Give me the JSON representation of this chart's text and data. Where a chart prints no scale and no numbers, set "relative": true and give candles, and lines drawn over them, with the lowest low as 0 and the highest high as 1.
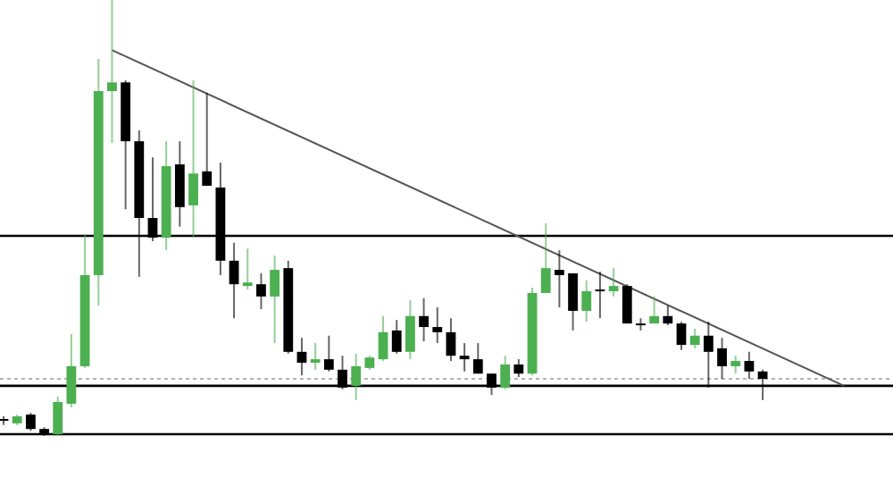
{
  "chart_data": {
    "type": "candlestick",
    "relative": true,
    "categories": [
      null,
      null,
      null,
      null,
      null,
      null,
      null,
      null,
      null,
      null,
      null,
      null,
      null,
      null,
      null,
      null,
      null,
      null,
      null,
      null,
      null,
      null,
      null,
      null,
      null,
      null,
      null,
      null,
      null,
      null,
      null,
      null,
      null,
      null,
      null,
      null,
      null,
      null,
      null,
      null,
      null,
      null,
      null,
      null,
      null,
      null,
      null,
      null,
      null,
      null,
      null,
      null,
      null,
      null,
      null,
      null,
      null,
      null,
      null,
      null,
      null,
      null,
      null,
      null,
      null
    ],
    "ohlc": [
      [
        0.039,
        0.045,
        0.025,
        0.035
      ],
      [
        0.029,
        0.049,
        0.025,
        0.045
      ],
      [
        0.049,
        0.053,
        0.012,
        0.016
      ],
      [
        0.016,
        0.02,
        0,
        0.004
      ],
      [
        0.004,
        0.09,
        0,
        0.078
      ],
      [
        0.074,
        0.234,
        0.066,
        0.16
      ],
      [
        0.16,
        0.463,
        0.156,
        0.369
      ],
      [
        0.369,
        0.865,
        0.299,
        0.791
      ],
      [
        0.791,
        1,
        0.672,
        0.811
      ],
      [
        0.811,
        0.816,
        0.52,
        0.676
      ],
      [
        0.676,
        0.701,
        0.365,
        0.5
      ],
      [
        0.5,
        0.639,
        0.447,
        0.455
      ],
      [
        0.455,
        0.676,
        0.426,
        0.619
      ],
      [
        0.623,
        0.676,
        0.48,
        0.525
      ],
      [
        0.529,
        0.816,
        0.455,
        0.602
      ],
      [
        0.607,
        0.787,
        0.574,
        0.574
      ],
      [
        0.57,
        0.627,
        0.369,
        0.402
      ],
      [
        0.402,
        0.443,
        0.27,
        0.348
      ],
      [
        0.344,
        0.43,
        0.336,
        0.352
      ],
      [
        0.348,
        0.373,
        0.291,
        0.32
      ],
      [
        0.32,
        0.414,
        0.213,
        0.381
      ],
      [
        0.385,
        0.402,
        0.189,
        0.193
      ],
      [
        0.193,
        0.225,
        0.139,
        0.168
      ],
      [
        0.168,
        0.213,
        0.152,
        0.176
      ],
      [
        0.176,
        0.23,
        0.148,
        0.152
      ],
      [
        0.152,
        0.184,
        0.107,
        0.111
      ],
      [
        0.115,
        0.189,
        0.082,
        0.16
      ],
      [
        0.156,
        0.184,
        0.152,
        0.18
      ],
      [
        0.176,
        0.275,
        0.172,
        0.238
      ],
      [
        0.242,
        0.266,
        0.189,
        0.193
      ],
      [
        0.193,
        0.311,
        0.176,
        0.275
      ],
      [
        0.275,
        0.316,
        0.217,
        0.25
      ],
      [
        0.25,
        0.295,
        0.213,
        0.238
      ],
      [
        0.238,
        0.27,
        0.172,
        0.184
      ],
      [
        0.184,
        0.213,
        0.148,
        0.176
      ],
      [
        0.176,
        0.213,
        0.143,
        0.143
      ],
      [
        0.143,
        0.143,
        0.094,
        0.111
      ],
      [
        0.111,
        0.184,
        0.107,
        0.164
      ],
      [
        0.164,
        0.176,
        0.135,
        0.143
      ],
      [
        0.143,
        0.34,
        0.139,
        0.328
      ],
      [
        0.328,
        0.488,
        0.328,
        0.385
      ],
      [
        0.381,
        0.426,
        0.295,
        0.369
      ],
      [
        0.373,
        0.373,
        0.242,
        0.287
      ],
      [
        0.287,
        0.357,
        0.262,
        0.332
      ],
      [
        0.336,
        0.377,
        0.27,
        0.332
      ],
      [
        0.332,
        0.385,
        0.32,
        0.344
      ],
      [
        0.344,
        0.348,
        0.258,
        0.258
      ],
      [
        0.258,
        0.27,
        0.242,
        0.258
      ],
      [
        0.258,
        0.32,
        0.258,
        0.275
      ],
      [
        0.275,
        0.299,
        0.254,
        0.258
      ],
      [
        0.258,
        0.262,
        0.197,
        0.209
      ],
      [
        0.209,
        0.246,
        0.201,
        0.23
      ],
      [
        0.23,
        0.262,
        0.111,
        0.193
      ],
      [
        0.201,
        0.225,
        0.131,
        0.16
      ],
      [
        0.16,
        0.184,
        0.143,
        0.172
      ],
      [
        0.172,
        0.193,
        0.131,
        0.148
      ],
      [
        0.148,
        0.152,
        0.082,
        0.131
      ],
      null,
      null,
      null,
      null,
      null,
      null,
      null,
      null
    ],
    "colors": [
      "#000000",
      "#4caf50",
      "#000000",
      "#000000",
      "#4caf50",
      "#4caf50",
      "#4caf50",
      "#4caf50",
      "#4caf50",
      "#000000",
      "#000000",
      "#000000",
      "#4caf50",
      "#000000",
      "#4caf50",
      "#000000",
      "#000000",
      "#000000",
      "#4caf50",
      "#000000",
      "#4caf50",
      "#000000",
      "#000000",
      "#4caf50",
      "#000000",
      "#000000",
      "#4caf50",
      "#4caf50",
      "#4caf50",
      "#000000",
      "#4caf50",
      "#000000",
      "#000000",
      "#000000",
      "#000000",
      "#000000",
      "#000000",
      "#4caf50",
      "#000000",
      "#4caf50",
      "#4caf50",
      "#000000",
      "#000000",
      "#4caf50",
      "#000000",
      "#4caf50",
      "#000000",
      "#000000",
      "#4caf50",
      "#000000",
      "#000000",
      "#4caf50",
      "#000000",
      "#000000",
      "#4caf50",
      "#000000",
      "#000000",
      null,
      null,
      null,
      null,
      null,
      null,
      null,
      null
    ],
    "series": [
      {
        "type": "line",
        "color": "#555555",
        "values": [
          null,
          null,
          null,
          null,
          null,
          null,
          null,
          null,
          0.885,
          null,
          null,
          null,
          null,
          null,
          null,
          null,
          null,
          null,
          null,
          null,
          null,
          null,
          null,
          null,
          null,
          null,
          null,
          null,
          null,
          null,
          null,
          null,
          null,
          null,
          null,
          null,
          null,
          null,
          null,
          null,
          null,
          null,
          null,
          null,
          null,
          null,
          null,
          null,
          null,
          null,
          null,
          null,
          null,
          null,
          null,
          null,
          null,
          null,
          null,
          null,
          null,
          null,
          0.115,
          null,
          null
        ]
      }
    ],
    "ref_lines": [
      {
        "axis": "y",
        "value": 0.459,
        "color": "#000000",
        "line_style": "solid"
      },
      {
        "axis": "y",
        "value": 0.131,
        "color": "#999999",
        "line_style": "dotted"
      },
      {
        "axis": "y",
        "value": 0.115,
        "color": "#000000",
        "line_style": "solid"
      },
      {
        "axis": "y",
        "value": 0.004,
        "color": "#000000",
        "line_style": "solid"
      }
    ]
  }
}
